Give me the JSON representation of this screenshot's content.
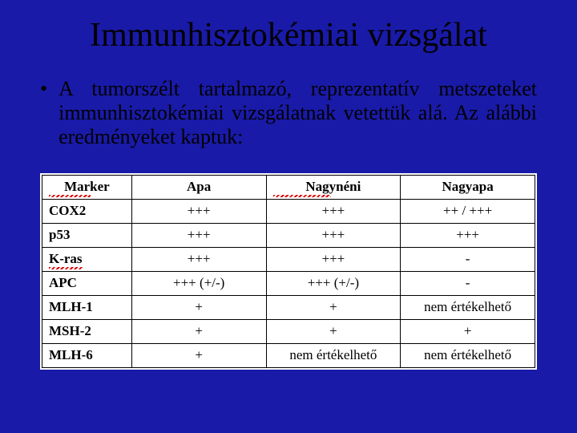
{
  "title": "Immunhisztokémiai vizsgálat",
  "bullet_char": "•",
  "body": "A tumorszélt tartalmazó, reprezentatív metszeteket immunhisztokémiai vizsgálatnak vetettük alá. Az alábbi eredményeket kaptuk:",
  "table": {
    "headers": [
      "Marker",
      "Apa",
      "Nagynéni",
      "Nagyapa"
    ],
    "header_squiggle": [
      true,
      false,
      true,
      false
    ],
    "rows": [
      {
        "marker": "COX2",
        "squiggle": false,
        "cells": [
          "+++",
          "+++",
          "++ / +++"
        ]
      },
      {
        "marker": "p53",
        "squiggle": false,
        "cells": [
          "+++",
          "+++",
          "+++"
        ]
      },
      {
        "marker": "K-ras",
        "squiggle": true,
        "cells": [
          "+++",
          "+++",
          "-"
        ]
      },
      {
        "marker": "APC",
        "squiggle": false,
        "cells": [
          "+++ (+/-)",
          "+++ (+/-)",
          "-"
        ]
      },
      {
        "marker": "MLH-1",
        "squiggle": false,
        "cells": [
          "+",
          "+",
          "nem értékelhető"
        ]
      },
      {
        "marker": "MSH-2",
        "squiggle": false,
        "cells": [
          "+",
          "+",
          "+"
        ]
      },
      {
        "marker": "MLH-6",
        "squiggle": false,
        "cells": [
          "+",
          "nem értékelhető",
          "nem értékelhető"
        ]
      }
    ],
    "squiggle_widths": {
      "Marker": "52px",
      "Nagynéni": "72px",
      "K-ras": "42px"
    }
  },
  "colors": {
    "slide_bg": "#1a1aa8",
    "text": "#000000",
    "table_bg": "#ffffff",
    "border": "#000000",
    "squiggle": "#d00000"
  }
}
